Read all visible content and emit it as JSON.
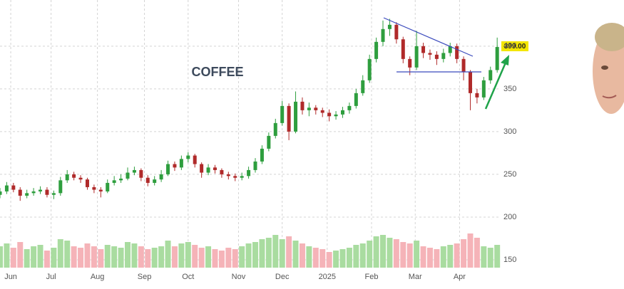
{
  "chart_data": {
    "type": "candlestick",
    "title": "COFFEE",
    "last_price_label": "399.00",
    "xlim": [
      0,
      74.3
    ],
    "xticks": [
      {
        "value": 1.6,
        "label": "Jun"
      },
      {
        "value": 7.6,
        "label": "Jul"
      },
      {
        "value": 14.5,
        "label": "Aug"
      },
      {
        "value": 21.5,
        "label": "Sep"
      },
      {
        "value": 28,
        "label": "Oct"
      },
      {
        "value": 35.5,
        "label": "Nov"
      },
      {
        "value": 42,
        "label": "Dec"
      },
      {
        "value": 48.7,
        "label": "2025"
      },
      {
        "value": 55.3,
        "label": "Feb"
      },
      {
        "value": 61.8,
        "label": "Mar"
      },
      {
        "value": 68.4,
        "label": "Apr"
      }
    ],
    "ylim": [
      122,
      454
    ],
    "yticks": [
      150,
      200,
      250,
      300,
      350,
      400
    ],
    "grid": true,
    "up_color": "#2e9e3e",
    "down_color": "#b02a2a",
    "volume_up_color": "#a9dca0",
    "volume_down_color": "#f5b3b8",
    "open": [
      226,
      230,
      237,
      232,
      225,
      228,
      230,
      232,
      226,
      228,
      243,
      250,
      246,
      244,
      235,
      232,
      230,
      240,
      243,
      245,
      252,
      255,
      246,
      240,
      244,
      250,
      262,
      258,
      268,
      272,
      262,
      252,
      258,
      255,
      250,
      248,
      246,
      248,
      255,
      265,
      280,
      295,
      310,
      330,
      300,
      335,
      325,
      328,
      325,
      322,
      318,
      320,
      325,
      330,
      345,
      360,
      385,
      405,
      420,
      425,
      408,
      385,
      375,
      400,
      392,
      390,
      385,
      392,
      400,
      385,
      370,
      345,
      340,
      360,
      372
    ],
    "high": [
      234,
      241,
      240,
      235,
      232,
      234,
      236,
      235,
      231,
      247,
      255,
      253,
      249,
      246,
      238,
      235,
      244,
      248,
      250,
      258,
      259,
      257,
      249,
      248,
      255,
      266,
      265,
      272,
      276,
      274,
      264,
      262,
      261,
      257,
      253,
      251,
      252,
      259,
      269,
      284,
      299,
      315,
      336,
      333,
      347,
      340,
      334,
      331,
      328,
      326,
      324,
      329,
      334,
      350,
      366,
      390,
      410,
      430,
      432,
      428,
      411,
      388,
      418,
      404,
      396,
      394,
      397,
      404,
      403,
      388,
      372,
      350,
      364,
      376,
      410
    ],
    "low": [
      222,
      227,
      229,
      219,
      222,
      225,
      227,
      223,
      221,
      225,
      240,
      243,
      240,
      232,
      228,
      223,
      228,
      237,
      240,
      243,
      249,
      242,
      236,
      237,
      241,
      248,
      254,
      255,
      264,
      258,
      246,
      249,
      251,
      246,
      244,
      242,
      243,
      245,
      252,
      262,
      277,
      292,
      307,
      290,
      298,
      320,
      318,
      320,
      317,
      312,
      314,
      316,
      321,
      327,
      342,
      357,
      381,
      400,
      412,
      403,
      380,
      366,
      372,
      386,
      384,
      378,
      381,
      388,
      380,
      360,
      325,
      333,
      337,
      356,
      369
    ],
    "close": [
      230,
      237,
      232,
      225,
      228,
      230,
      232,
      226,
      228,
      243,
      250,
      246,
      244,
      235,
      232,
      230,
      240,
      243,
      245,
      252,
      255,
      246,
      240,
      244,
      250,
      262,
      258,
      268,
      272,
      262,
      252,
      258,
      255,
      250,
      248,
      246,
      248,
      255,
      265,
      280,
      295,
      310,
      330,
      300,
      335,
      325,
      328,
      325,
      322,
      318,
      320,
      325,
      330,
      345,
      360,
      385,
      405,
      420,
      425,
      408,
      385,
      375,
      400,
      392,
      390,
      385,
      392,
      400,
      385,
      370,
      345,
      340,
      360,
      372,
      399
    ],
    "volume": [
      30,
      34,
      28,
      36,
      26,
      30,
      32,
      24,
      28,
      40,
      38,
      30,
      28,
      34,
      30,
      26,
      32,
      30,
      28,
      36,
      34,
      30,
      26,
      28,
      30,
      38,
      30,
      34,
      36,
      32,
      28,
      30,
      26,
      24,
      28,
      26,
      30,
      34,
      36,
      40,
      42,
      46,
      40,
      44,
      38,
      34,
      30,
      28,
      26,
      22,
      24,
      26,
      28,
      32,
      34,
      38,
      44,
      46,
      42,
      40,
      36,
      34,
      38,
      30,
      28,
      26,
      30,
      32,
      34,
      40,
      48,
      42,
      30,
      28,
      32
    ]
  }
}
